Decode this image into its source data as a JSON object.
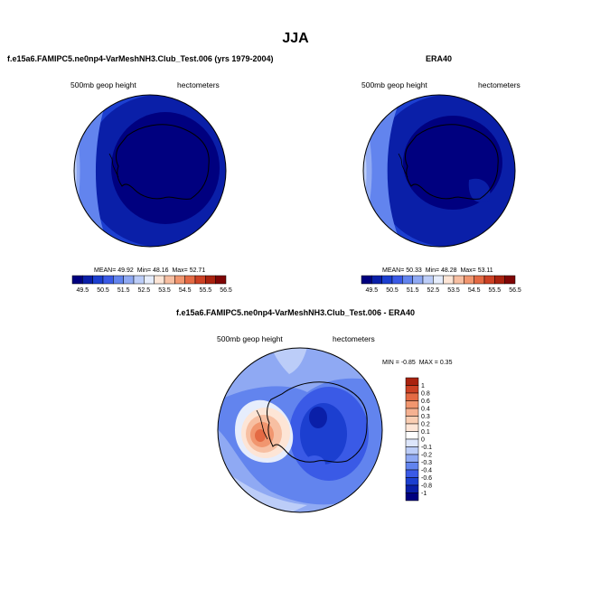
{
  "figure": {
    "title": "JJA",
    "panels": [
      {
        "title": "f.e15a6.FAMIPC5.ne0np4-VarMeshNH3.Club_Test.006 (yrs 1979-2004)",
        "left_label": "500mb geop height",
        "right_label": "hectometers",
        "stats": {
          "mean_label": "MEAN=",
          "mean": "49.92",
          "min_label": "Min=",
          "min": "48.16",
          "max_label": "Max=",
          "max": "52.71"
        }
      },
      {
        "title": "ERA40",
        "left_label": "500mb geop height",
        "right_label": "hectometers",
        "stats": {
          "mean_label": "MEAN=",
          "mean": "50.33",
          "min_label": "Min=",
          "min": "48.28",
          "max_label": "Max=",
          "max": "53.11"
        }
      },
      {
        "title": "f.e15a6.FAMIPC5.ne0np4-VarMeshNH3.Club_Test.006 - ERA40",
        "left_label": "500mb geop height",
        "right_label": "hectometers",
        "stats": {
          "min_label": "MIN =",
          "min": "-0.85",
          "max_label": "MAX =",
          "max": "0.35"
        }
      }
    ]
  },
  "chart_data": [
    {
      "type": "contour",
      "projection": "south polar stereographic",
      "variable": "500mb geop height",
      "units": "hectometers",
      "colorbar": {
        "orientation": "horizontal",
        "levels": [
          49.5,
          50,
          50.5,
          51,
          51.5,
          52,
          52.5,
          53,
          53.5,
          54,
          54.5,
          55,
          55.5,
          56,
          56.5
        ],
        "tick_labels": [
          "49.5",
          "50.5",
          "51.5",
          "52.5",
          "53.5",
          "54.5",
          "55.5",
          "56.5"
        ],
        "colors": [
          "#00007f",
          "#0a1fa8",
          "#1c3fd0",
          "#3a5ae6",
          "#6284ee",
          "#8fa9f3",
          "#bccdf8",
          "#e6edfc",
          "#fde5d6",
          "#f7bfa2",
          "#f1966f",
          "#e46a44",
          "#cc4124",
          "#a9220f",
          "#7f0505"
        ]
      },
      "stats": {
        "mean": 49.92,
        "min": 48.16,
        "max": 52.71
      }
    },
    {
      "type": "contour",
      "projection": "south polar stereographic",
      "variable": "500mb geop height",
      "units": "hectometers",
      "colorbar": {
        "orientation": "horizontal",
        "levels": [
          49.5,
          50,
          50.5,
          51,
          51.5,
          52,
          52.5,
          53,
          53.5,
          54,
          54.5,
          55,
          55.5,
          56,
          56.5
        ],
        "tick_labels": [
          "49.5",
          "50.5",
          "51.5",
          "52.5",
          "53.5",
          "54.5",
          "55.5",
          "56.5"
        ],
        "colors": [
          "#00007f",
          "#0a1fa8",
          "#1c3fd0",
          "#3a5ae6",
          "#6284ee",
          "#8fa9f3",
          "#bccdf8",
          "#e6edfc",
          "#fde5d6",
          "#f7bfa2",
          "#f1966f",
          "#e46a44",
          "#cc4124",
          "#a9220f",
          "#7f0505"
        ]
      },
      "stats": {
        "mean": 50.33,
        "min": 48.28,
        "max": 53.11
      }
    },
    {
      "type": "contour",
      "projection": "south polar stereographic",
      "variable": "500mb geop height",
      "units": "hectometers",
      "colorbar": {
        "orientation": "vertical",
        "levels": [
          1,
          0.8,
          0.6,
          0.4,
          0.3,
          0.2,
          0.1,
          0,
          -0.1,
          -0.2,
          -0.3,
          -0.4,
          -0.6,
          -0.8,
          -1
        ],
        "tick_labels": [
          "1",
          "0.8",
          "0.6",
          "0.4",
          "0.3",
          "0.2",
          "0.1",
          "0",
          "-0.1",
          "-0.2",
          "-0.3",
          "-0.4",
          "-0.6",
          "-0.8",
          "-1"
        ],
        "colors": [
          "#a9220f",
          "#cc4124",
          "#e46a44",
          "#f1966f",
          "#f5b191",
          "#f9cdb2",
          "#fde5d6",
          "#ffffff",
          "#dde6fb",
          "#bccdf8",
          "#8fa9f3",
          "#6284ee",
          "#3a5ae6",
          "#1c3fd0",
          "#0a1fa8",
          "#00007f"
        ]
      },
      "stats": {
        "min": -0.85,
        "max": 0.35
      }
    }
  ]
}
